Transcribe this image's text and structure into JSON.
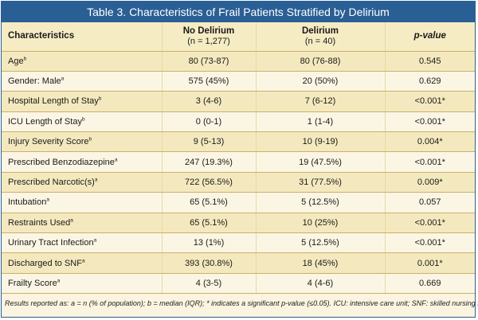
{
  "title": "Table 3. Characteristics of Frail Patients Stratified by Delirium",
  "columns": [
    {
      "label": "Characteristics",
      "sub": ""
    },
    {
      "label": "No Delirium",
      "sub": "(n = 1,277)"
    },
    {
      "label": "Delirium",
      "sub": "(n = 40)"
    },
    {
      "label": "p-value",
      "sub": ""
    }
  ],
  "rows": [
    {
      "name": "Age",
      "sup": "b",
      "no": "80 (73-87)",
      "yes": "80 (76-88)",
      "p": "0.545"
    },
    {
      "name": "Gender: Male",
      "sup": "a",
      "no": "575 (45%)",
      "yes": "20 (50%)",
      "p": "0.629"
    },
    {
      "name": "Hospital Length of Stay",
      "sup": "b",
      "no": "3 (4-6)",
      "yes": "7 (6-12)",
      "p": "<0.001*"
    },
    {
      "name": "ICU Length of Stay",
      "sup": "b",
      "no": "0 (0-1)",
      "yes": "1 (1-4)",
      "p": "<0.001*"
    },
    {
      "name": "Injury Severity Score",
      "sup": "b",
      "no": "9 (5-13)",
      "yes": "10 (9-19)",
      "p": "0.004*"
    },
    {
      "name": "Prescribed Benzodiazepine",
      "sup": "a",
      "no": "247 (19.3%)",
      "yes": "19 (47.5%)",
      "p": "<0.001*"
    },
    {
      "name": "Prescribed Narcotic(s)",
      "sup": "a",
      "no": "722 (56.5%)",
      "yes": "31 (77.5%)",
      "p": "0.009*"
    },
    {
      "name": "Intubation",
      "sup": "a",
      "no": "65 (5.1%)",
      "yes": "5 (12.5%)",
      "p": "0.057"
    },
    {
      "name": "Restraints Used",
      "sup": "a",
      "no": "65 (5.1%)",
      "yes": "10 (25%)",
      "p": "<0.001*"
    },
    {
      "name": "Urinary Tract Infection",
      "sup": "a",
      "no": "13 (1%)",
      "yes": "5 (12.5%)",
      "p": "<0.001*"
    },
    {
      "name": "Discharged to SNF",
      "sup": "a",
      "no": "393 (30.8%)",
      "yes": "18 (45%)",
      "p": "0.001*"
    },
    {
      "name": "Frailty Score",
      "sup": "a",
      "no": "4 (3-5)",
      "yes": "4 (4-6)",
      "p": "0.669"
    }
  ],
  "footnote": "Results reported as: a = n (% of population); b = median (IQR); * indicates a significant p-value (≤0.05). ICU: intensive care unit; SNF: skilled nursing facility.",
  "colors": {
    "header_blue": "#2a5f95",
    "row_alt": "#f4e9be",
    "row_plain": "#fbf6e4",
    "rule": "#c9b06b"
  }
}
